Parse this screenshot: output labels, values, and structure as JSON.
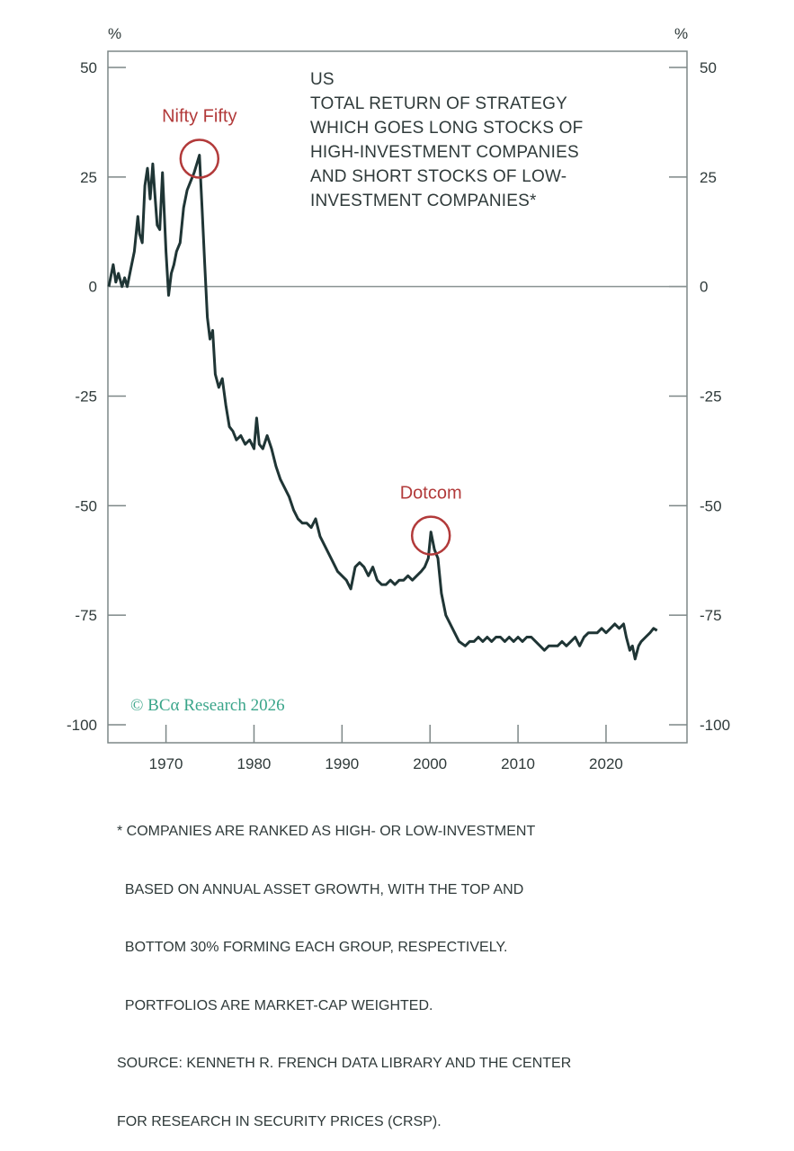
{
  "chart_data": {
    "type": "line",
    "title": [
      "US",
      "TOTAL RETURN OF STRATEGY",
      "WHICH GOES LONG STOCKS OF",
      "HIGH-INVESTMENT COMPANIES",
      "AND SHORT STOCKS OF LOW-",
      "INVESTMENT COMPANIES*"
    ],
    "ylabel_left": "%",
    "ylabel_right": "%",
    "ylim": [
      -100,
      50
    ],
    "yticks": [
      50,
      25,
      0,
      -25,
      -50,
      -75,
      -100
    ],
    "xlim": [
      1963.4,
      2029.2
    ],
    "xticks": [
      1970,
      1980,
      1990,
      2000,
      2010,
      2020
    ],
    "grid": false,
    "zero_line": true,
    "line_color": "#1f3535",
    "annotation_color": "#b23a3a",
    "annotations": [
      {
        "label": "Nifty Fifty",
        "x": 1973.8,
        "y": 30
      },
      {
        "label": "Dotcom",
        "x": 2000.1,
        "y": -56
      }
    ],
    "series": [
      {
        "x": [
          1963.5,
          1964,
          1964.3,
          1964.6,
          1965,
          1965.3,
          1965.6,
          1966,
          1966.4,
          1966.8,
          1967,
          1967.3,
          1967.6,
          1967.9,
          1968.2,
          1968.5,
          1968.7,
          1969,
          1969.3,
          1969.6,
          1970,
          1970.3,
          1970.6,
          1970.9,
          1971.2,
          1971.6,
          1972,
          1972.4,
          1972.8,
          1973.2,
          1973.5,
          1973.8,
          1974.1,
          1974.4,
          1974.7,
          1975,
          1975.3,
          1975.6,
          1976,
          1976.4,
          1976.8,
          1977.2,
          1977.6,
          1978,
          1978.5,
          1979,
          1979.5,
          1980,
          1980.3,
          1980.6,
          1981,
          1981.5,
          1982,
          1982.5,
          1983,
          1983.5,
          1984,
          1984.5,
          1985,
          1985.5,
          1986,
          1986.5,
          1987,
          1987.5,
          1988,
          1988.5,
          1989,
          1989.5,
          1990,
          1990.5,
          1991,
          1991.5,
          1992,
          1992.5,
          1993,
          1993.5,
          1994,
          1994.5,
          1995,
          1995.5,
          1996,
          1996.5,
          1997,
          1997.5,
          1998,
          1998.5,
          1999,
          1999.4,
          1999.8,
          2000.1,
          2000.5,
          2000.9,
          2001.3,
          2001.8,
          2002.3,
          2002.8,
          2003.3,
          2004,
          2004.5,
          2005,
          2005.5,
          2006,
          2006.5,
          2007,
          2007.5,
          2008,
          2008.5,
          2009,
          2009.5,
          2010,
          2010.5,
          2011,
          2011.5,
          2012,
          2012.5,
          2013,
          2013.5,
          2014,
          2014.5,
          2015,
          2015.5,
          2016,
          2016.5,
          2017,
          2017.5,
          2018,
          2018.5,
          2019,
          2019.5,
          2020,
          2020.5,
          2021,
          2021.5,
          2022,
          2022.3,
          2022.7,
          2023,
          2023.3,
          2023.7,
          2024,
          2024.5,
          2025,
          2025.4,
          2025.8
        ],
        "values": [
          0,
          5,
          1,
          3,
          0,
          2,
          0,
          4,
          8,
          16,
          12,
          10,
          23,
          27,
          20,
          28,
          22,
          14,
          13,
          26,
          8,
          -2,
          3,
          5,
          8,
          10,
          18,
          22,
          24,
          26,
          28,
          30,
          18,
          5,
          -7,
          -12,
          -10,
          -20,
          -23,
          -21,
          -27,
          -32,
          -33,
          -35,
          -34,
          -36,
          -35,
          -37,
          -30,
          -36,
          -37,
          -34,
          -37,
          -41,
          -44,
          -46,
          -48,
          -51,
          -53,
          -54,
          -54,
          -55,
          -53,
          -57,
          -59,
          -61,
          -63,
          -65,
          -66,
          -67,
          -69,
          -64,
          -63,
          -64,
          -66,
          -64,
          -67,
          -68,
          -68,
          -67,
          -68,
          -67,
          -67,
          -66,
          -67,
          -66,
          -65,
          -64,
          -62,
          -56,
          -60,
          -62,
          -70,
          -75,
          -77,
          -79,
          -81,
          -82,
          -81,
          -81,
          -80,
          -81,
          -80,
          -81,
          -80,
          -80,
          -81,
          -80,
          -81,
          -80,
          -81,
          -80,
          -80,
          -81,
          -82,
          -83,
          -82,
          -82,
          -82,
          -81,
          -82,
          -81,
          -80,
          -82,
          -80,
          -79,
          -79,
          -79,
          -78,
          -79,
          -78,
          -77,
          -78,
          -77,
          -80,
          -83,
          -82,
          -85,
          -82,
          -81,
          -80,
          -79,
          -78,
          -78.5
        ]
      }
    ]
  },
  "watermark": "© BCα Research 2026",
  "footnote": [
    "* COMPANIES ARE RANKED AS HIGH- OR LOW-INVESTMENT",
    "  BASED ON ANNUAL ASSET GROWTH, WITH THE TOP AND",
    "  BOTTOM 30% FORMING EACH GROUP, RESPECTIVELY.",
    "  PORTFOLIOS ARE MARKET-CAP WEIGHTED.",
    "SOURCE: KENNETH R. FRENCH DATA LIBRARY AND THE CENTER",
    "FOR RESEARCH IN SECURITY PRICES (CRSP)."
  ]
}
